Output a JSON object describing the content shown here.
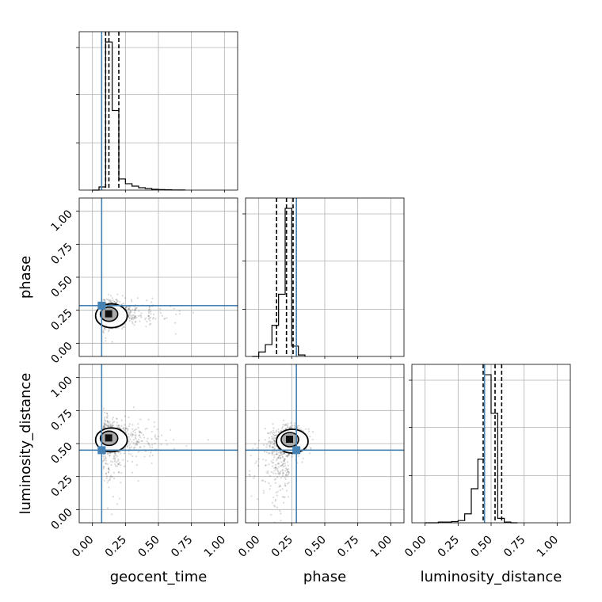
{
  "chart_data": {
    "type": "corner",
    "parameters": [
      "geocent_time",
      "phase",
      "luminosity_distance"
    ],
    "tick_labels": [
      "0.00",
      "0.25",
      "0.50",
      "0.75",
      "1.00"
    ],
    "ticks": [
      0,
      0.25,
      0.5,
      0.75,
      1.0
    ],
    "range": [
      -0.1,
      1.1
    ],
    "truths": {
      "geocent_time": 0.07,
      "phase": 0.285,
      "luminosity_distance": 0.45
    },
    "colors": {
      "truth": "#4682b4",
      "hist": "#000000",
      "grid": "#b0b0b0",
      "points": "#000000"
    },
    "histograms": {
      "geocent_time": {
        "bin_edges": [
          0.0,
          0.05,
          0.1,
          0.15,
          0.2,
          0.25,
          0.3,
          0.35,
          0.4,
          0.45,
          0.5,
          0.55,
          0.6,
          0.65,
          0.7
        ],
        "counts": [
          0.0,
          0.02,
          0.93,
          0.5,
          0.07,
          0.04,
          0.025,
          0.015,
          0.01,
          0.005,
          0.003,
          0.002,
          0.001,
          0.0005
        ],
        "quantiles": [
          0.1,
          0.125,
          0.2
        ]
      },
      "phase": {
        "bin_edges": [
          -0.05,
          0.0,
          0.05,
          0.1,
          0.15,
          0.2,
          0.25,
          0.3,
          0.35
        ],
        "counts": [
          0.0,
          0.03,
          0.08,
          0.21,
          0.42,
          1.0,
          0.07,
          0.01
        ],
        "quantiles": [
          0.135,
          0.21,
          0.26
        ]
      },
      "luminosity_distance": {
        "bin_edges": [
          0.0,
          0.1,
          0.2,
          0.25,
          0.3,
          0.35,
          0.4,
          0.45,
          0.5,
          0.55,
          0.6,
          0.65,
          0.7
        ],
        "counts": [
          0.0,
          0.005,
          0.008,
          0.015,
          0.06,
          0.23,
          0.43,
          1.0,
          0.74,
          0.03,
          0.005,
          0.0
        ],
        "quantiles": [
          0.44,
          0.53,
          0.58
        ]
      }
    },
    "panels_2d": [
      {
        "x": "geocent_time",
        "y": "phase",
        "center": [
          0.12,
          0.22
        ]
      },
      {
        "x": "geocent_time",
        "y": "luminosity_distance",
        "center": [
          0.12,
          0.54
        ]
      },
      {
        "x": "phase",
        "y": "luminosity_distance",
        "center": [
          0.23,
          0.53
        ]
      }
    ]
  }
}
